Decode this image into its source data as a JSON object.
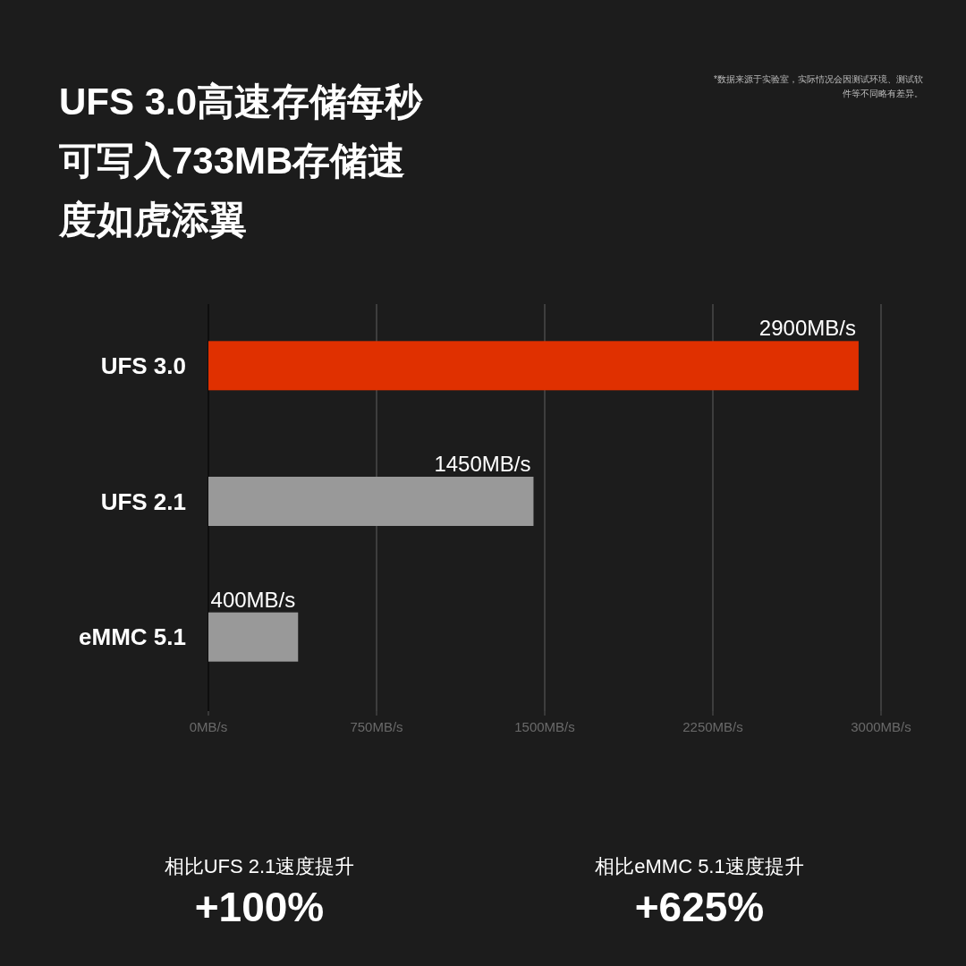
{
  "chart_data": {
    "type": "bar",
    "orientation": "horizontal",
    "title": "UFS 3.0高速存储每秒可写入733MB存储速度如虎添翼",
    "categories": [
      "UFS 3.0",
      "UFS 2.1",
      "eMMC 5.1"
    ],
    "values": [
      2900,
      1450,
      400
    ],
    "colors": [
      "#e03000",
      "#999999",
      "#999999"
    ],
    "value_labels": [
      "2900MB/s",
      "1450MB/s",
      "400MB/s"
    ],
    "xlim": [
      0,
      3000
    ],
    "xticks": [
      {
        "value": 0,
        "label": "0MB/s"
      },
      {
        "value": 750,
        "label": "750MB/s"
      },
      {
        "value": 1500,
        "label": "1500MB/s"
      },
      {
        "value": 2250,
        "label": "2250MB/s"
      },
      {
        "value": 3000,
        "label": "3000MB/s"
      }
    ],
    "grid": "x",
    "annotations": [
      "*数据来源于实验室，实际情况会因测试环境、测试软件等不同略有差异。",
      "相比UFS 2.1速度提升",
      "+100%",
      "相比eMMC 5.1速度提升",
      "+625%"
    ]
  }
}
